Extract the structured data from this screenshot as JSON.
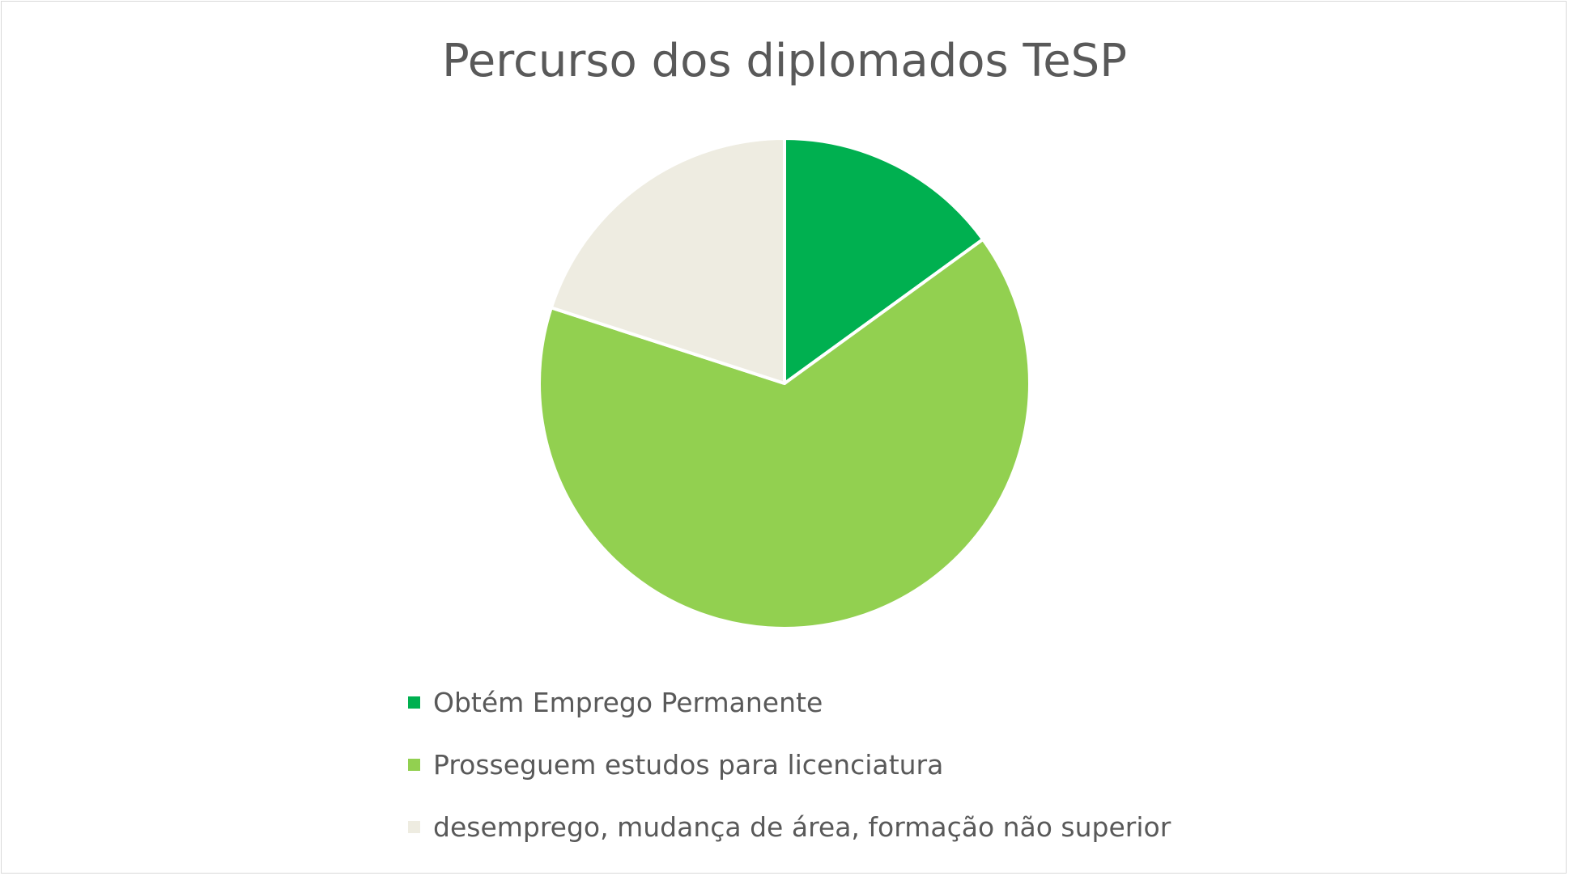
{
  "chart_data": {
    "type": "pie",
    "title": "Percurso dos diplomados TeSP",
    "categories": [
      "Obtém Emprego Permanente",
      "Prosseguem estudos para licenciatura",
      "desemprego, mudança de área, formação não superior"
    ],
    "values": [
      15,
      65,
      20
    ],
    "unit": "%",
    "colors": [
      "#00b050",
      "#92d050",
      "#eeece1"
    ],
    "start_angle_deg": 0,
    "direction": "clockwise",
    "legend_position": "bottom",
    "slice_border_color": "#ffffff"
  }
}
